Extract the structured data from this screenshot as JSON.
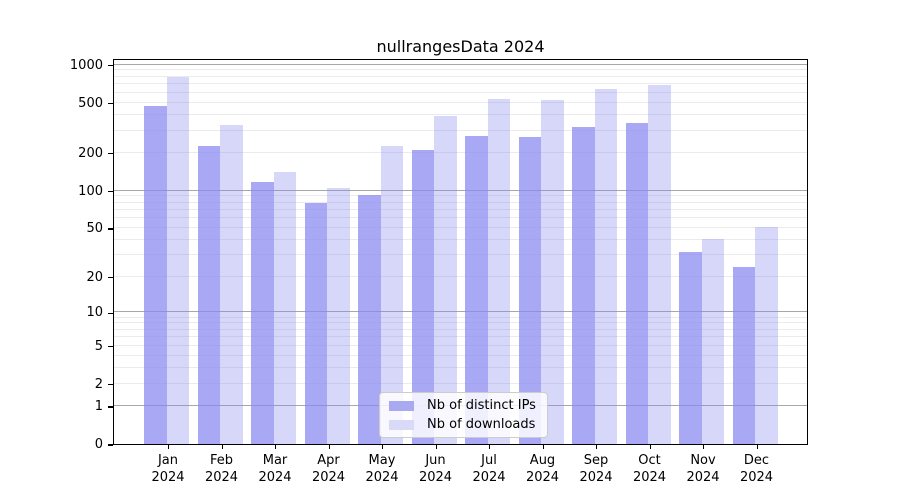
{
  "chart_data": {
    "type": "bar",
    "title": "nullrangesData 2024",
    "categories": [
      "Jan",
      "Feb",
      "Mar",
      "Apr",
      "May",
      "Jun",
      "Jul",
      "Aug",
      "Sep",
      "Oct",
      "Nov",
      "Dec"
    ],
    "category_year": "2024",
    "series": [
      {
        "name": "Nb of distinct IPs",
        "color": "#8686f0",
        "alpha": 0.72,
        "legend_color": "#a9a9f2",
        "values": [
          472,
          225,
          118,
          80,
          92,
          210,
          270,
          265,
          320,
          345,
          32,
          24
        ]
      },
      {
        "name": "Nb of downloads",
        "color": "#8686f0",
        "alpha": 0.33,
        "legend_color": "#d9d9f8",
        "values": [
          800,
          335,
          140,
          105,
          225,
          390,
          530,
          520,
          640,
          695,
          41,
          51
        ]
      }
    ],
    "y_scale": "log1p",
    "ylim": [
      0,
      1115
    ],
    "y_ticks": [
      0,
      1,
      2,
      5,
      10,
      20,
      50,
      100,
      200,
      500,
      1000
    ],
    "y_gridlines_major": [
      1,
      10,
      100,
      1000
    ],
    "y_gridlines_minor": [
      2,
      3,
      4,
      5,
      6,
      7,
      8,
      9,
      20,
      30,
      40,
      50,
      60,
      70,
      80,
      90,
      200,
      300,
      400,
      500,
      600,
      700,
      800,
      900
    ],
    "grid": true,
    "legend_position": "bottom-center-inside",
    "frame_color": "#000000",
    "gridline_major_color": "#a8a8a8",
    "gridline_minor_color": "#ebebeb"
  }
}
